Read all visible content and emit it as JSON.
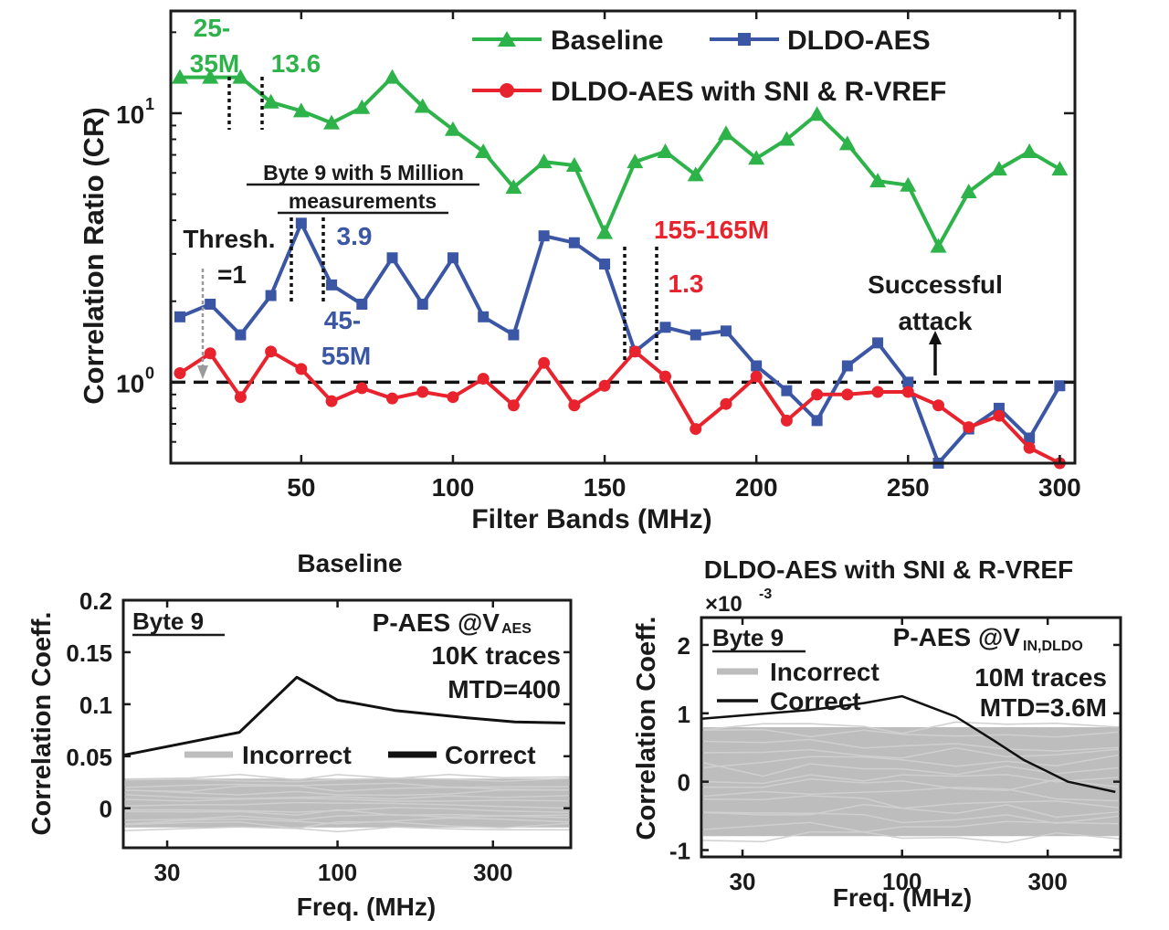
{
  "colors": {
    "baseline": "#2db34a",
    "dldo": "#3a56a5",
    "sni": "#e8232d",
    "axis": "#1a1a1a",
    "incorrect": "#bdbdbd",
    "correct": "#111111"
  },
  "chart_data": [
    {
      "type": "line",
      "yscale": "log",
      "xlabel": "Filter Bands (MHz)",
      "ylabel": "Correlation Ratio (CR)",
      "xlim": [
        7,
        305
      ],
      "ylim": [
        0.5,
        24
      ],
      "x_ticks": [
        "50",
        "100",
        "150",
        "200",
        "250",
        "300"
      ],
      "y_tick_base": "10",
      "y_ticks": [
        {
          "exp": "0",
          "value": 1
        },
        {
          "exp": "1",
          "value": 10
        }
      ],
      "threshold": 1,
      "x": [
        10,
        20,
        30,
        40,
        50,
        60,
        70,
        80,
        90,
        100,
        110,
        120,
        130,
        140,
        150,
        160,
        170,
        180,
        190,
        200,
        210,
        220,
        230,
        240,
        250,
        260,
        270,
        280,
        290,
        300
      ],
      "series": [
        {
          "name": "Baseline",
          "color_key": "baseline",
          "marker": "triangle",
          "values": [
            13.6,
            13.6,
            13.6,
            11.0,
            10.2,
            9.2,
            10.5,
            13.6,
            10.6,
            8.7,
            7.2,
            5.3,
            6.6,
            6.4,
            3.6,
            6.6,
            7.2,
            5.9,
            8.4,
            6.8,
            8.0,
            9.9,
            7.7,
            5.6,
            5.4,
            3.2,
            5.1,
            6.2,
            7.2,
            6.2
          ]
        },
        {
          "name": "DLDO-AES",
          "color_key": "dldo",
          "marker": "square",
          "values": [
            1.75,
            1.95,
            1.5,
            2.1,
            3.9,
            2.3,
            1.95,
            2.9,
            1.95,
            2.9,
            1.75,
            1.5,
            3.5,
            3.3,
            2.75,
            1.3,
            1.6,
            1.5,
            1.55,
            1.15,
            0.93,
            0.72,
            1.15,
            1.4,
            1.0,
            0.5,
            0.67,
            0.8,
            0.62,
            0.97
          ]
        },
        {
          "name": "DLDO-AES with SNI & R-VREF",
          "color_key": "sni",
          "marker": "circle",
          "values": [
            1.08,
            1.28,
            0.88,
            1.3,
            1.12,
            0.85,
            0.95,
            0.87,
            0.92,
            0.88,
            1.03,
            0.82,
            1.18,
            0.82,
            0.97,
            1.3,
            1.05,
            0.67,
            0.83,
            1.05,
            0.72,
            0.9,
            0.9,
            0.92,
            0.92,
            0.82,
            0.68,
            0.75,
            0.57,
            0.5
          ]
        }
      ],
      "annotations": {
        "green_band_top": "25-",
        "green_band_bottom": "35M",
        "green_value": "13.6",
        "byte_note_line1": "Byte 9 with 5 Million",
        "byte_note_line2": "measurements",
        "thresh_line1": "Thresh.",
        "thresh_line2": "=1",
        "blue_value": "3.9",
        "blue_band_top": "45-",
        "blue_band_bottom": "55M",
        "red_band": "155-165M",
        "red_value": "1.3",
        "attack_line1": "Successful",
        "attack_line2": "attack"
      }
    },
    {
      "type": "line",
      "title": "Baseline",
      "xscale": "log",
      "xlabel": "Freq. (MHz)",
      "ylabel": "Correlation Coeff.",
      "xlim": [
        22,
        520
      ],
      "ylim": [
        -0.038,
        0.2
      ],
      "x_ticks": [
        "30",
        "100",
        "300"
      ],
      "y_ticks": [
        "0.2",
        "0.15",
        "0.1",
        "0.05",
        "0"
      ],
      "box_label": "Byte 9",
      "info_name": "P-AES @V",
      "info_sub": "AES",
      "info_traces": "10K traces",
      "info_mtd": "MTD=400",
      "legend_incorrect": "Incorrect",
      "legend_correct": "Correct",
      "correct": {
        "x": [
          22,
          50,
          75,
          100,
          150,
          250,
          350,
          500
        ],
        "y": [
          0.051,
          0.073,
          0.126,
          0.104,
          0.094,
          0.087,
          0.083,
          0.082
        ]
      },
      "incorrect_band": [
        -0.022,
        0.032
      ]
    },
    {
      "type": "line",
      "title": "DLDO-AES with SNI & R-VREF",
      "xscale": "log",
      "xlabel": "Freq. (MHz)",
      "ylabel": "Correlation Coeff.",
      "xlim": [
        22,
        520
      ],
      "ylim": [
        -1.1,
        2.4
      ],
      "y_scale_note": "×10",
      "y_scale_exp": "-3",
      "x_ticks": [
        "30",
        "100",
        "300"
      ],
      "y_ticks": [
        "2",
        "1",
        "0",
        "-1"
      ],
      "box_label": "Byte 9",
      "info_name": "P-AES @V",
      "info_sub": "IN,DLDO",
      "info_traces": "10M traces",
      "info_mtd": "MTD=3.6M",
      "legend_incorrect": "Incorrect",
      "legend_correct": "Correct",
      "correct": {
        "x": [
          22,
          50,
          75,
          100,
          150,
          200,
          250,
          350,
          500
        ],
        "y": [
          0.92,
          1.05,
          1.15,
          1.25,
          0.95,
          0.6,
          0.32,
          0.0,
          -0.15
        ]
      },
      "incorrect_band": [
        -0.85,
        0.85
      ]
    }
  ]
}
